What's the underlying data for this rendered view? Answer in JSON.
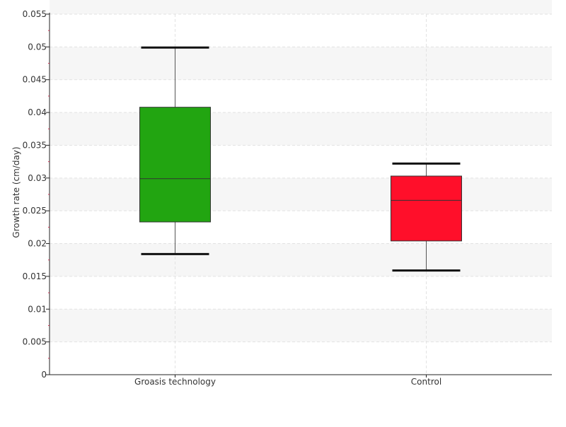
{
  "chart_data": {
    "type": "box",
    "categories": [
      "Groasis technology",
      "Control"
    ],
    "boxes": [
      {
        "category": "Groasis technology",
        "whisker_low": 0.0184,
        "q1": 0.0233,
        "median": 0.0299,
        "q3": 0.0408,
        "whisker_high": 0.0499,
        "color": "#22a511"
      },
      {
        "category": "Control",
        "whisker_low": 0.0159,
        "q1": 0.0204,
        "median": 0.0266,
        "q3": 0.0303,
        "whisker_high": 0.0322,
        "color": "#ff0f2a"
      }
    ],
    "ylabel": "Growth rate (cm/day)",
    "xlabel": "",
    "ylim": [
      0,
      0.055
    ],
    "yticks": [
      "0",
      "0.005",
      "0.01",
      "0.015",
      "0.02",
      "0.025",
      "0.03",
      "0.035",
      "0.04",
      "0.045",
      "0.05",
      "0.055"
    ],
    "grid": true,
    "banded_background": true
  }
}
